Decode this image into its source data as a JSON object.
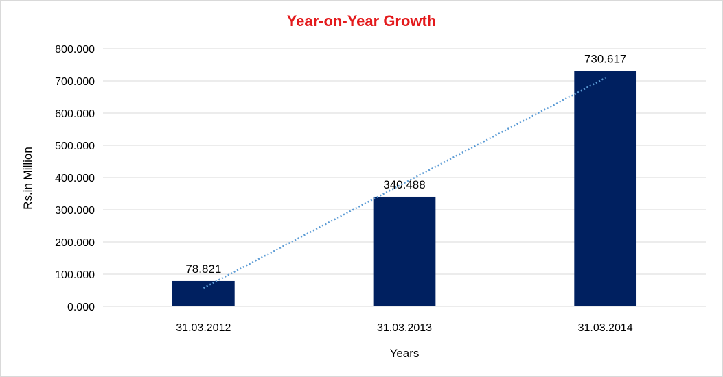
{
  "chart_data": {
    "type": "bar",
    "title": "Year-on-Year Growth",
    "xlabel": "Years",
    "ylabel": "Rs.in Million",
    "categories": [
      "31.03.2012",
      "31.03.2013",
      "31.03.2014"
    ],
    "values": [
      78.821,
      340.488,
      730.617
    ],
    "value_labels": [
      "78.821",
      "340.488",
      "730.617"
    ],
    "ylim": [
      0,
      800
    ],
    "yticks": [
      0,
      100,
      200,
      300,
      400,
      500,
      600,
      700,
      800
    ],
    "ytick_labels": [
      "0.000",
      "100.000",
      "200.000",
      "300.000",
      "400.000",
      "500.000",
      "600.000",
      "700.000",
      "800.000"
    ],
    "grid": true,
    "legend": "none",
    "trendline": {
      "type": "linear",
      "style": "dotted"
    },
    "colors": {
      "bar": "#002060",
      "title": "#e31a1c",
      "grid": "#d9d9d9",
      "trendline": "#5b9bd5"
    }
  }
}
